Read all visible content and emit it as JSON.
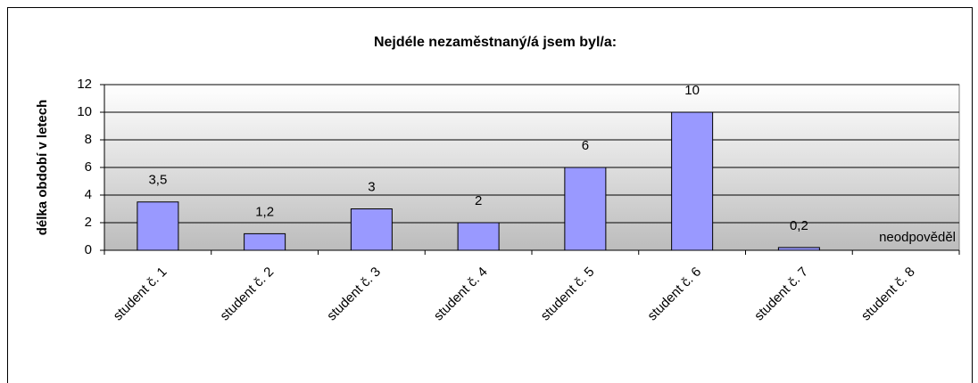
{
  "chart_data": {
    "type": "bar",
    "title": "Nejdéle nezaměstnaný/á jsem byl/a:",
    "y_label": "délka období v letech",
    "categories": [
      "student č. 1",
      "student č. 2",
      "student č. 3",
      "student č. 4",
      "student č. 5",
      "student č. 6",
      "student č. 7",
      "student č. 8"
    ],
    "values": [
      3.5,
      1.2,
      3,
      2,
      6,
      10,
      0.2,
      null
    ],
    "value_labels": [
      "3,5",
      "1,2",
      "3",
      "2",
      "6",
      "10",
      "0,2",
      null
    ],
    "annotation": "neodpověděl",
    "color": "#9999ff",
    "ylim": [
      0,
      12
    ],
    "yticks": [
      0,
      2,
      4,
      6,
      8,
      10,
      12
    ],
    "grid": true
  }
}
